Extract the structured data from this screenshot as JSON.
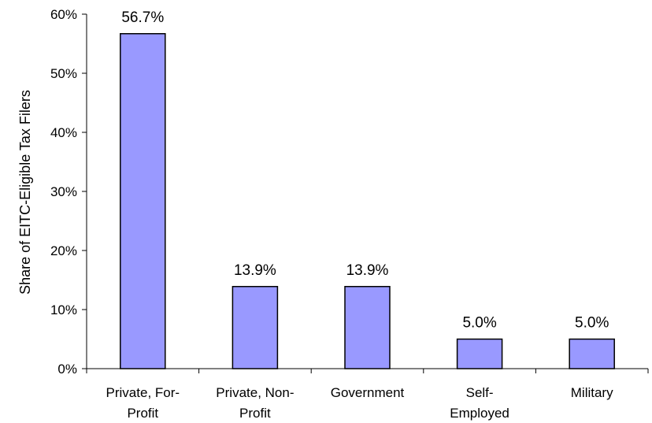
{
  "chart_data": {
    "type": "bar",
    "title": "",
    "xlabel": "",
    "ylabel": "Share of EITC-Eligible Tax Filers",
    "categories": [
      [
        "Private, For-",
        "Profit"
      ],
      [
        "Private, Non-",
        "Profit"
      ],
      [
        "Government"
      ],
      [
        "Self-",
        "Employed"
      ],
      [
        "Military"
      ]
    ],
    "values": [
      56.7,
      13.9,
      13.9,
      5.0,
      5.0
    ],
    "data_labels": [
      "56.7%",
      "13.9%",
      "13.9%",
      "5.0%",
      "5.0%"
    ],
    "ylim": [
      0,
      60
    ],
    "yticks": [
      0,
      10,
      20,
      30,
      40,
      50,
      60
    ],
    "ytick_labels": [
      "0%",
      "10%",
      "20%",
      "30%",
      "40%",
      "50%",
      "60%"
    ],
    "grid": false,
    "legend": "none",
    "colors": {
      "bar_fill": "#9999ff",
      "bar_stroke": "#000000"
    }
  }
}
